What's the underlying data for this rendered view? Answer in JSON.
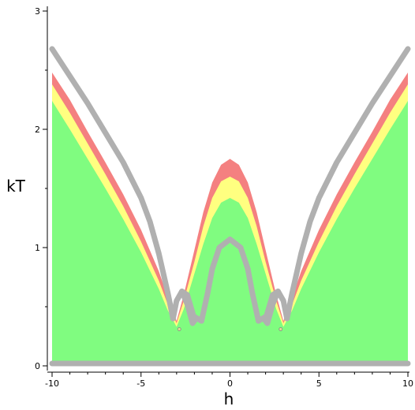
{
  "chart_data": {
    "type": "area",
    "xlabel": "h",
    "ylabel": "kT",
    "xlim": [
      -10,
      10
    ],
    "ylim": [
      0,
      3
    ],
    "xticks": [
      -10,
      -5,
      0,
      5,
      10
    ],
    "yticks": [
      0,
      1,
      2,
      3
    ],
    "grid": false,
    "legend": "none",
    "colors": {
      "red": "#f48080",
      "yellow": "#ffff80",
      "green": "#80fc80",
      "gray_curve": "#b0b0b0"
    },
    "regions": [
      {
        "color": "red",
        "points": [
          [
            -10,
            2.48
          ],
          [
            -9,
            2.25
          ],
          [
            -8,
            1.98
          ],
          [
            -7,
            1.72
          ],
          [
            -6,
            1.45
          ],
          [
            -5,
            1.15
          ],
          [
            -4,
            0.8
          ],
          [
            -3.5,
            0.58
          ],
          [
            -3,
            0.38
          ],
          [
            -2.6,
            0.6
          ],
          [
            -2,
            0.98
          ],
          [
            -1.5,
            1.3
          ],
          [
            -1,
            1.55
          ],
          [
            -0.5,
            1.7
          ],
          [
            0,
            1.75
          ],
          [
            0.5,
            1.7
          ],
          [
            1,
            1.55
          ],
          [
            1.5,
            1.3
          ],
          [
            2,
            0.98
          ],
          [
            2.6,
            0.6
          ],
          [
            3,
            0.38
          ],
          [
            3.5,
            0.58
          ],
          [
            4,
            0.8
          ],
          [
            5,
            1.15
          ],
          [
            6,
            1.45
          ],
          [
            7,
            1.72
          ],
          [
            8,
            1.98
          ],
          [
            9,
            2.25
          ],
          [
            10,
            2.48
          ]
        ]
      },
      {
        "color": "yellow",
        "points": [
          [
            -10,
            2.38
          ],
          [
            -9,
            2.14
          ],
          [
            -8,
            1.88
          ],
          [
            -7,
            1.62
          ],
          [
            -6,
            1.35
          ],
          [
            -5,
            1.05
          ],
          [
            -4,
            0.72
          ],
          [
            -3.5,
            0.52
          ],
          [
            -3,
            0.36
          ],
          [
            -2.6,
            0.55
          ],
          [
            -2,
            0.88
          ],
          [
            -1.5,
            1.18
          ],
          [
            -1,
            1.42
          ],
          [
            -0.5,
            1.56
          ],
          [
            0,
            1.6
          ],
          [
            0.5,
            1.56
          ],
          [
            1,
            1.42
          ],
          [
            1.5,
            1.18
          ],
          [
            2,
            0.88
          ],
          [
            2.6,
            0.55
          ],
          [
            3,
            0.36
          ],
          [
            3.5,
            0.52
          ],
          [
            4,
            0.72
          ],
          [
            5,
            1.05
          ],
          [
            6,
            1.35
          ],
          [
            7,
            1.62
          ],
          [
            8,
            1.88
          ],
          [
            9,
            2.14
          ],
          [
            10,
            2.38
          ]
        ]
      },
      {
        "color": "green",
        "points": [
          [
            -10,
            2.24
          ],
          [
            -9,
            2.0
          ],
          [
            -8,
            1.75
          ],
          [
            -7,
            1.5
          ],
          [
            -6,
            1.24
          ],
          [
            -5,
            0.96
          ],
          [
            -4,
            0.65
          ],
          [
            -3.5,
            0.47
          ],
          [
            -3,
            0.33
          ],
          [
            -2.6,
            0.48
          ],
          [
            -2,
            0.78
          ],
          [
            -1.5,
            1.03
          ],
          [
            -1,
            1.25
          ],
          [
            -0.5,
            1.38
          ],
          [
            0,
            1.42
          ],
          [
            0.5,
            1.38
          ],
          [
            1,
            1.25
          ],
          [
            1.5,
            1.03
          ],
          [
            2,
            0.78
          ],
          [
            2.6,
            0.48
          ],
          [
            3,
            0.33
          ],
          [
            3.5,
            0.47
          ],
          [
            4,
            0.65
          ],
          [
            5,
            0.96
          ],
          [
            6,
            1.24
          ],
          [
            7,
            1.5
          ],
          [
            8,
            1.75
          ],
          [
            9,
            2.0
          ],
          [
            10,
            2.24
          ]
        ]
      }
    ],
    "gray_curves": [
      [
        [
          -10,
          2.68
        ],
        [
          -8,
          2.22
        ],
        [
          -6,
          1.72
        ],
        [
          -5,
          1.42
        ],
        [
          -4.5,
          1.22
        ],
        [
          -4,
          0.95
        ],
        [
          -3.5,
          0.62
        ],
        [
          -3.2,
          0.4
        ]
      ],
      [
        [
          -3.2,
          0.4
        ],
        [
          -3.0,
          0.55
        ],
        [
          -2.7,
          0.63
        ],
        [
          -2.4,
          0.6
        ],
        [
          -2.05,
          0.42
        ],
        [
          -1.6,
          0.38
        ]
      ],
      [
        [
          -1.6,
          0.38
        ],
        [
          -1.25,
          0.62
        ],
        [
          -1,
          0.82
        ],
        [
          -0.6,
          1.0
        ],
        [
          0,
          1.07
        ],
        [
          0.6,
          1.0
        ],
        [
          1,
          0.82
        ],
        [
          1.25,
          0.62
        ],
        [
          1.6,
          0.38
        ]
      ],
      [
        [
          1.6,
          0.38
        ],
        [
          2.05,
          0.42
        ],
        [
          2.4,
          0.6
        ],
        [
          2.7,
          0.63
        ],
        [
          3.0,
          0.55
        ],
        [
          3.2,
          0.4
        ]
      ],
      [
        [
          3.2,
          0.4
        ],
        [
          3.5,
          0.62
        ],
        [
          4,
          0.95
        ],
        [
          4.5,
          1.22
        ],
        [
          5,
          1.42
        ],
        [
          6,
          1.72
        ],
        [
          8,
          2.22
        ],
        [
          10,
          2.68
        ]
      ],
      [
        [
          -2.7,
          0.63
        ],
        [
          -2.4,
          0.52
        ],
        [
          -2.1,
          0.36
        ],
        [
          -1.9,
          0.4
        ]
      ],
      [
        [
          2.7,
          0.63
        ],
        [
          2.4,
          0.52
        ],
        [
          2.1,
          0.36
        ],
        [
          1.9,
          0.4
        ]
      ],
      [
        [
          -10,
          0.02
        ],
        [
          10,
          0.02
        ]
      ]
    ],
    "markers": [
      [
        -2.85,
        0.31
      ],
      [
        2.85,
        0.31
      ]
    ]
  }
}
